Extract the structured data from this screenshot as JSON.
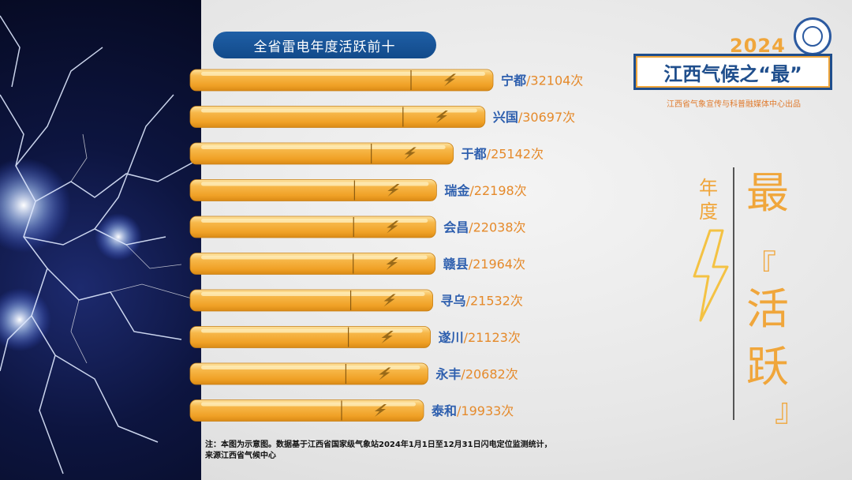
{
  "title_pill": "全省雷电年度活跃前十",
  "year": "2024",
  "banner": "江西气候之“最”",
  "org": "江西省气象宣传与科普融媒体中心出品",
  "side_label": [
    "年",
    "度"
  ],
  "big_chars": [
    "最",
    "活",
    "跃"
  ],
  "brackets": [
    "『",
    "』"
  ],
  "note_lines": [
    "注：本图为示意图。数据基于江西省国家级气象站2024年1月1日至12月31日闪电定位监测统计，",
    "来源江西省气候中心"
  ],
  "colors": {
    "bar": "#f2a730",
    "bar_light": "#fcd67a",
    "name": "#2e5fae",
    "value": "#e58a2b",
    "title_bg": "#1f5fa6"
  },
  "chart_data": {
    "type": "bar",
    "orientation": "horizontal",
    "categories": [
      "宁都",
      "兴国",
      "于都",
      "瑞金",
      "会昌",
      "赣县",
      "寻乌",
      "遂川",
      "永丰",
      "泰和"
    ],
    "values": [
      32104,
      30697,
      25142,
      22198,
      22038,
      21964,
      21532,
      21123,
      20682,
      19933
    ],
    "unit": "次",
    "separator": "/",
    "title": "全省雷电年度活跃前十"
  }
}
